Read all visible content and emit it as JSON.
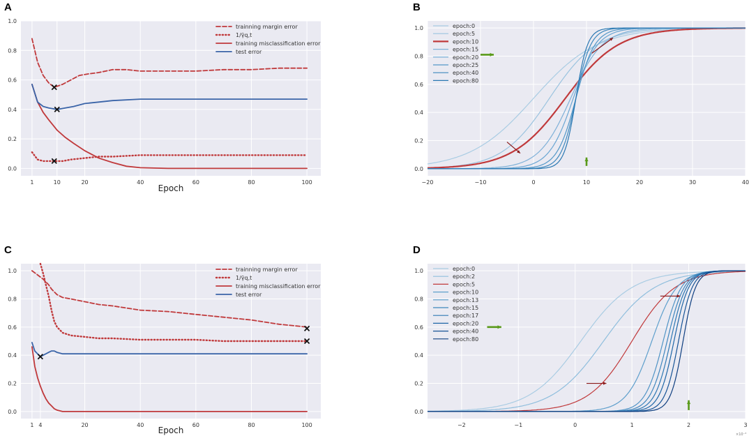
{
  "chart_data": [
    {
      "id": "A",
      "type": "line",
      "panel_label": "A",
      "xlabel": "Epoch",
      "xticks": [
        "1",
        "10",
        "20",
        "40",
        "60",
        "80",
        "100"
      ],
      "xtick_values": [
        1,
        10,
        20,
        40,
        60,
        80,
        100
      ],
      "yticks": [
        "0.0",
        "0.2",
        "0.4",
        "0.6",
        "0.8",
        "1.0"
      ],
      "ytick_values": [
        0,
        0.2,
        0.4,
        0.6,
        0.8,
        1.0
      ],
      "xlim": [
        -3,
        105
      ],
      "ylim": [
        -0.05,
        1.0
      ],
      "legend_position": "top-right",
      "series": [
        {
          "name": "trainning margin error",
          "style": "dashed",
          "color": "#c0393b",
          "x": [
            1,
            3,
            5,
            7,
            9,
            12,
            15,
            18,
            21,
            25,
            30,
            35,
            40,
            50,
            60,
            70,
            80,
            90,
            100
          ],
          "y": [
            0.88,
            0.72,
            0.63,
            0.58,
            0.55,
            0.57,
            0.6,
            0.63,
            0.64,
            0.65,
            0.67,
            0.67,
            0.66,
            0.66,
            0.66,
            0.67,
            0.67,
            0.68,
            0.68
          ]
        },
        {
          "name": "1/γ̄q,t",
          "style": "dotted",
          "color": "#c0393b",
          "x": [
            1,
            3,
            5,
            7,
            9,
            12,
            15,
            20,
            25,
            30,
            40,
            50,
            60,
            70,
            80,
            90,
            100
          ],
          "y": [
            0.11,
            0.06,
            0.05,
            0.05,
            0.05,
            0.05,
            0.06,
            0.07,
            0.08,
            0.08,
            0.09,
            0.09,
            0.09,
            0.09,
            0.09,
            0.09,
            0.09
          ]
        },
        {
          "name": "training misclassification error",
          "style": "solid",
          "color": "#c0393b",
          "x": [
            1,
            3,
            5,
            7,
            10,
            13,
            16,
            20,
            25,
            30,
            35,
            40,
            50,
            60,
            70,
            80,
            90,
            100
          ],
          "y": [
            0.57,
            0.45,
            0.38,
            0.33,
            0.26,
            0.21,
            0.17,
            0.12,
            0.07,
            0.04,
            0.015,
            0.005,
            0,
            0,
            0,
            0,
            0,
            0
          ]
        },
        {
          "name": "test error",
          "style": "solid",
          "color": "#3a64a8",
          "x": [
            1,
            3,
            5,
            7,
            10,
            13,
            16,
            20,
            25,
            30,
            40,
            50,
            60,
            70,
            80,
            90,
            100
          ],
          "y": [
            0.57,
            0.45,
            0.42,
            0.41,
            0.4,
            0.41,
            0.42,
            0.44,
            0.45,
            0.46,
            0.47,
            0.47,
            0.47,
            0.47,
            0.47,
            0.47,
            0.47
          ]
        }
      ],
      "markers": [
        {
          "symbol": "x",
          "x": 9,
          "y": 0.55
        },
        {
          "symbol": "x",
          "x": 10,
          "y": 0.4
        },
        {
          "symbol": "x",
          "x": 9,
          "y": 0.05
        }
      ]
    },
    {
      "id": "B",
      "type": "line",
      "panel_label": "B",
      "xlabel": "",
      "xticks": [
        "−20",
        "−10",
        "0",
        "10",
        "20",
        "30",
        "40"
      ],
      "xtick_values": [
        -20,
        -10,
        0,
        10,
        20,
        30,
        40
      ],
      "yticks": [
        "0.0",
        "0.2",
        "0.4",
        "0.6",
        "0.8",
        "1.0"
      ],
      "ytick_values": [
        0,
        0.2,
        0.4,
        0.6,
        0.8,
        1.0
      ],
      "xlim": [
        -20,
        40
      ],
      "ylim": [
        -0.05,
        1.05
      ],
      "legend_position": "top-left",
      "series": [
        {
          "name": "epoch:0",
          "color": "#a9cce3",
          "center": 0,
          "scale": 6.0,
          "width": 1.2
        },
        {
          "name": "epoch:5",
          "color": "#9ac3df",
          "center": 3,
          "scale": 4.5,
          "width": 1.2
        },
        {
          "name": "epoch:10",
          "color": "#c0393b",
          "center": 6,
          "scale": 5.0,
          "width": 2.2
        },
        {
          "name": "epoch:15",
          "color": "#7fb1d8",
          "center": 7,
          "scale": 3.0,
          "width": 1.2
        },
        {
          "name": "epoch:20",
          "color": "#6aa6d3",
          "center": 7.5,
          "scale": 2.3,
          "width": 1.2
        },
        {
          "name": "epoch:25",
          "color": "#5398c8",
          "center": 8,
          "scale": 1.8,
          "width": 1.2
        },
        {
          "name": "epoch:40",
          "color": "#3d88bd",
          "center": 8,
          "scale": 1.4,
          "width": 1.2
        },
        {
          "name": "epoch:80",
          "color": "#2a78b2",
          "center": 8,
          "scale": 1.1,
          "width": 1.2
        }
      ],
      "arrows": [
        {
          "from": [
            11,
            0.82
          ],
          "to": [
            15,
            0.93
          ],
          "color": "#8b1a1a"
        },
        {
          "from": [
            -5,
            0.19
          ],
          "to": [
            -2.5,
            0.11
          ],
          "color": "#8b1a1a"
        },
        {
          "from": [
            -10,
            0.81
          ],
          "to": [
            -7.5,
            0.81
          ],
          "color": "#5a9a1a"
        },
        {
          "from": [
            10,
            0.02
          ],
          "to": [
            10,
            0.08
          ],
          "color": "#5a9a1a"
        }
      ]
    },
    {
      "id": "C",
      "type": "line",
      "panel_label": "C",
      "xlabel": "Epoch",
      "xticks": [
        "1",
        "4",
        "20",
        "40",
        "60",
        "80",
        "100"
      ],
      "xtick_values": [
        1,
        4,
        20,
        40,
        60,
        80,
        100
      ],
      "yticks": [
        "0.0",
        "0.2",
        "0.4",
        "0.6",
        "0.8",
        "1.0"
      ],
      "ytick_values": [
        0,
        0.2,
        0.4,
        0.6,
        0.8,
        1.0
      ],
      "xlim": [
        -3,
        105
      ],
      "ylim": [
        -0.05,
        1.05
      ],
      "legend_position": "top-right",
      "series": [
        {
          "name": "trainning margin error",
          "style": "dashed",
          "color": "#c0393b",
          "x": [
            1,
            3,
            5,
            7,
            8,
            9,
            10,
            12,
            15,
            20,
            25,
            30,
            40,
            50,
            60,
            70,
            80,
            90,
            100
          ],
          "y": [
            1.0,
            0.97,
            0.94,
            0.9,
            0.87,
            0.85,
            0.83,
            0.81,
            0.8,
            0.78,
            0.76,
            0.75,
            0.72,
            0.71,
            0.69,
            0.67,
            0.65,
            0.62,
            0.6
          ]
        },
        {
          "name": "1/γ̄q,t",
          "style": "dotted",
          "color": "#c0393b",
          "x": [
            4,
            5,
            6,
            7,
            8,
            9,
            10,
            12,
            15,
            20,
            25,
            30,
            40,
            50,
            60,
            70,
            80,
            90,
            100
          ],
          "y": [
            1.05,
            0.98,
            0.9,
            0.82,
            0.72,
            0.64,
            0.6,
            0.56,
            0.54,
            0.53,
            0.52,
            0.52,
            0.51,
            0.51,
            0.51,
            0.5,
            0.5,
            0.5,
            0.5
          ]
        },
        {
          "name": "training misclassification error",
          "style": "solid",
          "color": "#c0393b",
          "x": [
            1,
            2,
            3,
            4,
            5,
            6,
            7,
            8,
            9,
            10,
            11,
            12,
            15,
            20,
            40,
            60,
            80,
            100
          ],
          "y": [
            0.46,
            0.32,
            0.24,
            0.18,
            0.13,
            0.09,
            0.06,
            0.04,
            0.02,
            0.01,
            0.005,
            0,
            0,
            0,
            0,
            0,
            0,
            0
          ]
        },
        {
          "name": "test error",
          "style": "solid",
          "color": "#3a64a8",
          "x": [
            1,
            2,
            3,
            4,
            5,
            6,
            7,
            8,
            9,
            10,
            12,
            15,
            20,
            40,
            60,
            80,
            100
          ],
          "y": [
            0.49,
            0.43,
            0.41,
            0.39,
            0.4,
            0.41,
            0.42,
            0.43,
            0.43,
            0.42,
            0.41,
            0.41,
            0.41,
            0.41,
            0.41,
            0.41,
            0.41
          ]
        }
      ],
      "markers": [
        {
          "symbol": "x",
          "x": 4,
          "y": 0.39
        },
        {
          "symbol": "x",
          "x": 100,
          "y": 0.59
        },
        {
          "symbol": "x",
          "x": 100,
          "y": 0.5
        }
      ]
    },
    {
      "id": "D",
      "type": "line",
      "panel_label": "D",
      "xlabel": "",
      "xticks": [
        "−2",
        "−1",
        "0",
        "1",
        "2",
        "3"
      ],
      "xtick_values": [
        -2,
        -1,
        0,
        1,
        2,
        3
      ],
      "yticks": [
        "0.0",
        "0.2",
        "0.4",
        "0.6",
        "0.8",
        "1.0"
      ],
      "ytick_values": [
        0,
        0.2,
        0.4,
        0.6,
        0.8,
        1.0
      ],
      "xlim": [
        -2.6,
        3.0
      ],
      "ylim": [
        -0.05,
        1.05
      ],
      "legend_position": "top-left",
      "exponent_label": "×10⁻³",
      "series": [
        {
          "name": "epoch:0",
          "color": "#a9cce3",
          "center": 0.1,
          "scale": 0.45,
          "width": 1.2
        },
        {
          "name": "epoch:2",
          "color": "#8fbedd",
          "center": 0.5,
          "scale": 0.45,
          "width": 1.2
        },
        {
          "name": "epoch:5",
          "color": "#c0393b",
          "center": 1.0,
          "scale": 0.38,
          "width": 1.2
        },
        {
          "name": "epoch:10",
          "color": "#5e9fcc",
          "center": 1.35,
          "scale": 0.22,
          "width": 1.2
        },
        {
          "name": "epoch:13",
          "color": "#4f93c5",
          "center": 1.55,
          "scale": 0.16,
          "width": 1.2
        },
        {
          "name": "epoch:15",
          "color": "#3f86bd",
          "center": 1.62,
          "scale": 0.15,
          "width": 1.2
        },
        {
          "name": "epoch:17",
          "color": "#2f78b3",
          "center": 1.68,
          "scale": 0.14,
          "width": 1.2
        },
        {
          "name": "epoch:20",
          "color": "#1f66a6",
          "center": 1.74,
          "scale": 0.13,
          "width": 1.2
        },
        {
          "name": "epoch:40",
          "color": "#175496",
          "center": 1.82,
          "scale": 0.12,
          "width": 1.2
        },
        {
          "name": "epoch:80",
          "color": "#0f3f80",
          "center": 1.9,
          "scale": 0.11,
          "width": 1.2
        }
      ],
      "arrows": [
        {
          "from": [
            1.5,
            0.82
          ],
          "to": [
            1.85,
            0.82
          ],
          "color": "#8b1a1a"
        },
        {
          "from": [
            0.2,
            0.2
          ],
          "to": [
            0.55,
            0.2
          ],
          "color": "#8b1a1a"
        },
        {
          "from": [
            -1.55,
            0.6
          ],
          "to": [
            -1.3,
            0.6
          ],
          "color": "#5a9a1a"
        },
        {
          "from": [
            2.0,
            0.01
          ],
          "to": [
            2.0,
            0.08
          ],
          "color": "#5a9a1a"
        }
      ]
    }
  ]
}
